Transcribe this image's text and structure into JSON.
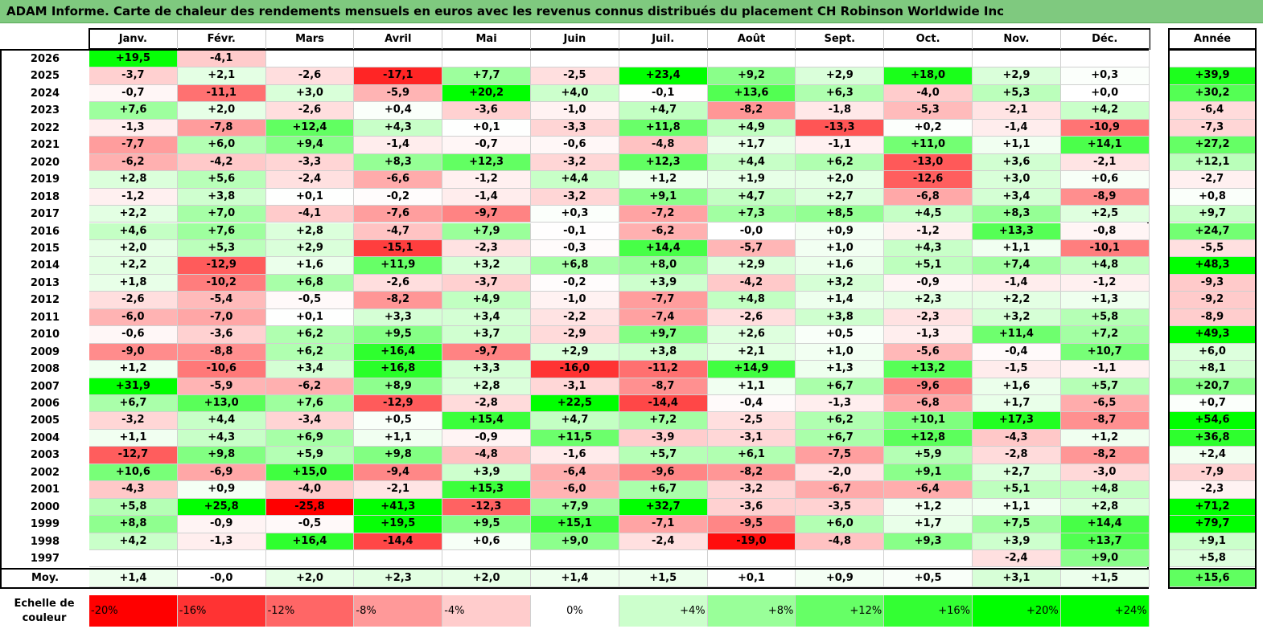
{
  "title": "ADAM Informe. Carte de chaleur des rendements mensuels en euros avec les revenus connus distribués du placement CH Robinson Worldwide Inc",
  "chart_data": {
    "type": "heatmap",
    "months": [
      "Janv.",
      "Févr.",
      "Mars",
      "Avril",
      "Mai",
      "Juin",
      "Juil.",
      "Août",
      "Sept.",
      "Oct.",
      "Nov.",
      "Déc."
    ],
    "year_header": "Année",
    "avg_label": "Moy.",
    "rows": [
      {
        "year": "2026",
        "values": [
          "+19,5",
          "-4,1",
          "",
          "",
          "",
          "",
          "",
          "",
          "",
          "",
          "",
          ""
        ],
        "annual": ""
      },
      {
        "year": "2025",
        "values": [
          "-3,7",
          "+2,1",
          "-2,6",
          "-17,1",
          "+7,7",
          "-2,5",
          "+23,4",
          "+9,2",
          "+2,9",
          "+18,0",
          "+2,9",
          "+0,3"
        ],
        "annual": "+39,9"
      },
      {
        "year": "2024",
        "values": [
          "-0,7",
          "-11,1",
          "+3,0",
          "-5,9",
          "+20,2",
          "+4,0",
          "-0,1",
          "+13,6",
          "+6,3",
          "-4,0",
          "+5,3",
          "+0,0"
        ],
        "annual": "+30,2"
      },
      {
        "year": "2023",
        "values": [
          "+7,6",
          "+2,0",
          "-2,6",
          "+0,4",
          "-3,6",
          "-1,0",
          "+4,7",
          "-8,2",
          "-1,8",
          "-5,3",
          "-2,1",
          "+4,2"
        ],
        "annual": "-6,4"
      },
      {
        "year": "2022",
        "values": [
          "-1,3",
          "-7,8",
          "+12,4",
          "+4,3",
          "+0,1",
          "-3,3",
          "+11,8",
          "+4,9",
          "-13,3",
          "+0,2",
          "-1,4",
          "-10,9"
        ],
        "annual": "-7,3"
      },
      {
        "year": "2021",
        "values": [
          "-7,7",
          "+6,0",
          "+9,4",
          "-1,4",
          "-0,7",
          "-0,6",
          "-4,8",
          "+1,7",
          "-1,1",
          "+11,0",
          "+1,1",
          "+14,1"
        ],
        "annual": "+27,2"
      },
      {
        "year": "2020",
        "values": [
          "-6,2",
          "-4,2",
          "-3,3",
          "+8,3",
          "+12,3",
          "-3,2",
          "+12,3",
          "+4,4",
          "+6,2",
          "-13,0",
          "+3,6",
          "-2,1"
        ],
        "annual": "+12,1"
      },
      {
        "year": "2019",
        "values": [
          "+2,8",
          "+5,6",
          "-2,4",
          "-6,6",
          "-1,2",
          "+4,4",
          "+1,2",
          "+1,9",
          "+2,0",
          "-12,6",
          "+3,0",
          "+0,6"
        ],
        "annual": "-2,7"
      },
      {
        "year": "2018",
        "values": [
          "-1,2",
          "+3,8",
          "+0,1",
          "-0,2",
          "-1,4",
          "-3,2",
          "+9,1",
          "+4,7",
          "+2,7",
          "-6,8",
          "+3,4",
          "-8,9"
        ],
        "annual": "+0,8"
      },
      {
        "year": "2017",
        "values": [
          "+2,2",
          "+7,0",
          "-4,1",
          "-7,6",
          "-9,7",
          "+0,3",
          "-7,2",
          "+7,3",
          "+8,5",
          "+4,5",
          "+8,3",
          "+2,5"
        ],
        "annual": "+9,7"
      },
      {
        "year": "2016",
        "values": [
          "+4,6",
          "+7,6",
          "+2,8",
          "-4,7",
          "+7,9",
          "-0,1",
          "-6,2",
          "-0,0",
          "+0,9",
          "-1,2",
          "+13,3",
          "-0,8"
        ],
        "annual": "+24,7"
      },
      {
        "year": "2015",
        "values": [
          "+2,0",
          "+5,3",
          "+2,9",
          "-15,1",
          "-2,3",
          "-0,3",
          "+14,4",
          "-5,7",
          "+1,0",
          "+4,3",
          "+1,1",
          "-10,1"
        ],
        "annual": "-5,5"
      },
      {
        "year": "2014",
        "values": [
          "+2,2",
          "-12,9",
          "+1,6",
          "+11,9",
          "+3,2",
          "+6,8",
          "+8,0",
          "+2,9",
          "+1,6",
          "+5,1",
          "+7,4",
          "+4,8"
        ],
        "annual": "+48,3"
      },
      {
        "year": "2013",
        "values": [
          "+1,8",
          "-10,2",
          "+6,8",
          "-2,6",
          "-3,7",
          "-0,2",
          "+3,9",
          "-4,2",
          "+3,2",
          "-0,9",
          "-1,4",
          "-1,2"
        ],
        "annual": "-9,3"
      },
      {
        "year": "2012",
        "values": [
          "-2,6",
          "-5,4",
          "-0,5",
          "-8,2",
          "+4,9",
          "-1,0",
          "-7,7",
          "+4,8",
          "+1,4",
          "+2,3",
          "+2,2",
          "+1,3"
        ],
        "annual": "-9,2"
      },
      {
        "year": "2011",
        "values": [
          "-6,0",
          "-7,0",
          "+0,1",
          "+3,3",
          "+3,4",
          "-2,2",
          "-7,4",
          "-2,6",
          "+3,8",
          "-2,3",
          "+3,2",
          "+5,8"
        ],
        "annual": "-8,9"
      },
      {
        "year": "2010",
        "values": [
          "-0,6",
          "-3,6",
          "+6,2",
          "+9,5",
          "+3,7",
          "-2,9",
          "+9,7",
          "+2,6",
          "+0,5",
          "-1,3",
          "+11,4",
          "+7,2"
        ],
        "annual": "+49,3"
      },
      {
        "year": "2009",
        "values": [
          "-9,0",
          "-8,8",
          "+6,2",
          "+16,4",
          "-9,7",
          "+2,9",
          "+3,8",
          "+2,1",
          "+1,0",
          "-5,6",
          "-0,4",
          "+10,7"
        ],
        "annual": "+6,0"
      },
      {
        "year": "2008",
        "values": [
          "+1,2",
          "-10,6",
          "+3,4",
          "+16,8",
          "+3,3",
          "-16,0",
          "-11,2",
          "+14,9",
          "+1,3",
          "+13,2",
          "-1,5",
          "-1,1"
        ],
        "annual": "+8,1"
      },
      {
        "year": "2007",
        "values": [
          "+31,9",
          "-5,9",
          "-6,2",
          "+8,9",
          "+2,8",
          "-3,1",
          "-8,7",
          "+1,1",
          "+6,7",
          "-9,6",
          "+1,6",
          "+5,7"
        ],
        "annual": "+20,7"
      },
      {
        "year": "2006",
        "values": [
          "+6,7",
          "+13,0",
          "+7,6",
          "-12,9",
          "-2,8",
          "+22,5",
          "-14,4",
          "-0,4",
          "-1,3",
          "-6,8",
          "+1,7",
          "-6,5"
        ],
        "annual": "+0,7"
      },
      {
        "year": "2005",
        "values": [
          "-3,2",
          "+4,4",
          "-3,4",
          "+0,5",
          "+15,4",
          "+4,7",
          "+7,2",
          "-2,5",
          "+6,2",
          "+10,1",
          "+17,3",
          "-8,7"
        ],
        "annual": "+54,6"
      },
      {
        "year": "2004",
        "values": [
          "+1,1",
          "+4,3",
          "+6,9",
          "+1,1",
          "-0,9",
          "+11,5",
          "-3,9",
          "-3,1",
          "+6,7",
          "+12,8",
          "-4,3",
          "+1,2"
        ],
        "annual": "+36,8"
      },
      {
        "year": "2003",
        "values": [
          "-12,7",
          "+9,8",
          "+5,9",
          "+9,8",
          "-4,8",
          "-1,6",
          "+5,7",
          "+6,1",
          "-7,5",
          "+5,9",
          "-2,8",
          "-8,2"
        ],
        "annual": "+2,4"
      },
      {
        "year": "2002",
        "values": [
          "+10,6",
          "-6,9",
          "+15,0",
          "-9,4",
          "+3,9",
          "-6,4",
          "-9,6",
          "-8,2",
          "-2,0",
          "+9,1",
          "+2,7",
          "-3,0"
        ],
        "annual": "-7,9"
      },
      {
        "year": "2001",
        "values": [
          "-4,3",
          "+0,9",
          "-4,0",
          "-2,1",
          "+15,3",
          "-6,0",
          "+6,7",
          "-3,2",
          "-6,7",
          "-6,4",
          "+5,1",
          "+4,8"
        ],
        "annual": "-2,3"
      },
      {
        "year": "2000",
        "values": [
          "+5,8",
          "+25,8",
          "-25,8",
          "+41,3",
          "-12,3",
          "+7,9",
          "+32,7",
          "-3,6",
          "-3,5",
          "+1,2",
          "+1,1",
          "+2,8"
        ],
        "annual": "+71,2"
      },
      {
        "year": "1999",
        "values": [
          "+8,8",
          "-0,9",
          "-0,5",
          "+19,5",
          "+9,5",
          "+15,1",
          "-7,1",
          "-9,5",
          "+6,0",
          "+1,7",
          "+7,5",
          "+14,4"
        ],
        "annual": "+79,7"
      },
      {
        "year": "1998",
        "values": [
          "+4,2",
          "-1,3",
          "+16,4",
          "-14,4",
          "+0,6",
          "+9,0",
          "-2,4",
          "-19,0",
          "-4,8",
          "+9,3",
          "+3,9",
          "+13,7"
        ],
        "annual": "+9,1"
      },
      {
        "year": "1997",
        "values": [
          "",
          "",
          "",
          "",
          "",
          "",
          "",
          "",
          "",
          "",
          "-2,4",
          "+9,0"
        ],
        "annual": "+5,8"
      }
    ],
    "average": {
      "values": [
        "+1,4",
        "-0,0",
        "+2,0",
        "+2,3",
        "+2,0",
        "+1,4",
        "+1,5",
        "+0,1",
        "+0,9",
        "+0,5",
        "+3,1",
        "+1,5"
      ],
      "annual": "+15,6"
    },
    "scale_label": "Echelle de couleur",
    "scale": [
      {
        "label": "-20%",
        "value": -20
      },
      {
        "label": "-16%",
        "value": -16
      },
      {
        "label": "-12%",
        "value": -12
      },
      {
        "label": "-8%",
        "value": -8
      },
      {
        "label": "-4%",
        "value": -4
      },
      {
        "label": "0%",
        "value": 0
      },
      {
        "label": "+4%",
        "value": 4
      },
      {
        "label": "+8%",
        "value": 8
      },
      {
        "label": "+12%",
        "value": 12
      },
      {
        "label": "+16%",
        "value": 16
      },
      {
        "label": "+20%",
        "value": 20
      },
      {
        "label": "+24%",
        "value": 24
      }
    ],
    "colors": {
      "negative_max": "#ff0000",
      "neutral": "#ffffff",
      "positive_max": "#00ff00",
      "title_bg": "#7fc97f"
    }
  }
}
